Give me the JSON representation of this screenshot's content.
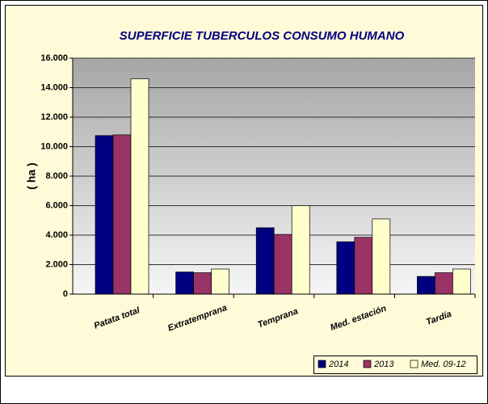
{
  "chart_data": {
    "type": "bar",
    "title": "SUPERFICIE TUBERCULOS CONSUMO HUMANO",
    "y_label": "( ha )",
    "categories": [
      "Patata total",
      "Extratemprana",
      "Temprana",
      "Med. estación",
      "Tardía"
    ],
    "series": [
      {
        "name": "2014",
        "color": "#000080",
        "values": [
          10750,
          1500,
          4500,
          3550,
          1200
        ]
      },
      {
        "name": "2013",
        "color": "#993366",
        "values": [
          10800,
          1450,
          4050,
          3850,
          1450
        ]
      },
      {
        "name": "Med. 09-12",
        "color": "#ffffcc",
        "values": [
          14600,
          1700,
          6000,
          5100,
          1700
        ]
      }
    ],
    "ylim": [
      0,
      16000
    ],
    "yticks": [
      0,
      {
        "value": 2000,
        "label": "2.000"
      },
      {
        "value": 4000,
        "label": "4.000"
      },
      {
        "value": 6000,
        "label": "6.000"
      },
      {
        "value": 8000,
        "label": "8.000"
      },
      {
        "value": 10000,
        "label": "10.000"
      },
      {
        "value": 12000,
        "label": "12.000"
      },
      {
        "value": 14000,
        "label": "14.000"
      },
      {
        "value": 16000,
        "label": "16.000"
      }
    ],
    "grid": true,
    "legend": "bottom-right"
  }
}
